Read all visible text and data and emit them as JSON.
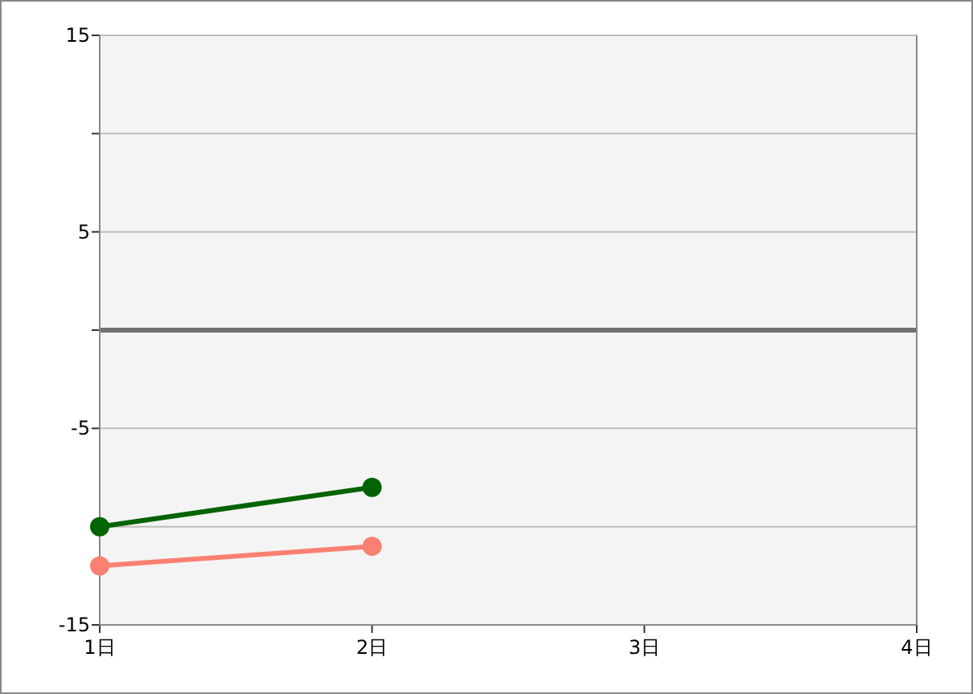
{
  "chart_data": {
    "type": "line",
    "categories": [
      "1日",
      "2日",
      "3日",
      "4日"
    ],
    "series": [
      {
        "color": "#006400",
        "values": [
          -10,
          -8,
          null,
          null
        ]
      },
      {
        "color": "#fa8072",
        "values": [
          -12,
          -11,
          null,
          null
        ]
      }
    ],
    "ylim": [
      -15,
      15
    ],
    "yticks": [
      15,
      {
        "value": 10,
        "label": null
      },
      5,
      {
        "value": 0,
        "label": null
      },
      -5,
      {
        "value": -10,
        "label": null
      },
      -15
    ],
    "grid": "y",
    "marker": "circle",
    "line_style": "solid",
    "ref_lines": [
      {
        "axis": "y",
        "value": 0,
        "color": "#707070"
      }
    ]
  }
}
